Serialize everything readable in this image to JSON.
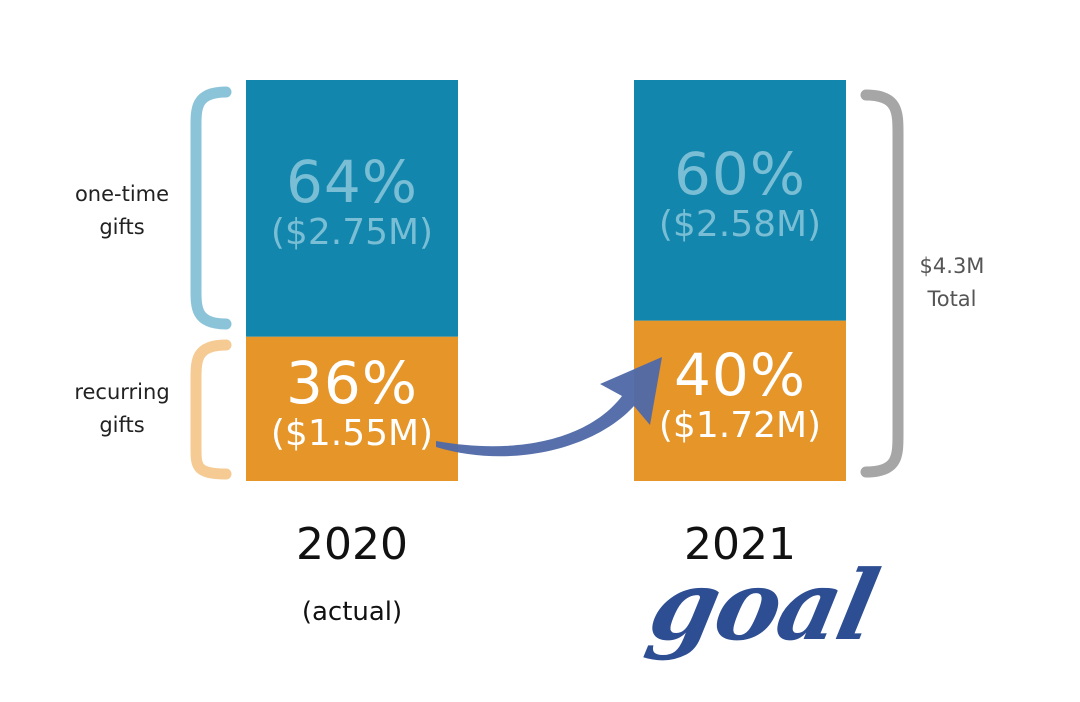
{
  "chart_data": {
    "type": "bar",
    "stacked": true,
    "categories": [
      "2020",
      "2021"
    ],
    "category_notes": [
      "(actual)",
      "goal"
    ],
    "series": [
      {
        "name": "recurring gifts",
        "values": [
          36,
          40
        ],
        "labels": [
          "36%",
          "40%"
        ],
        "amounts": [
          "($1.55M)",
          "($1.72M)"
        ],
        "color": "#E69528",
        "text_color": "#FFFFFF"
      },
      {
        "name": "one-time gifts",
        "values": [
          64,
          60
        ],
        "labels": [
          "64%",
          "60%"
        ],
        "amounts": [
          "($2.75M)",
          "($2.58M)"
        ],
        "color": "#1386AD",
        "text_color": "#79BED4"
      }
    ],
    "ylim": [
      0,
      100
    ],
    "total_annotation": "$4.3M\nTotal",
    "arrow_color": "#4E68A8",
    "bracket_colors": {
      "one-time": "#8BC4D8",
      "recurring": "#F5CB93",
      "total": "#A6A6A6"
    },
    "goal_color": "#2E4E93"
  }
}
